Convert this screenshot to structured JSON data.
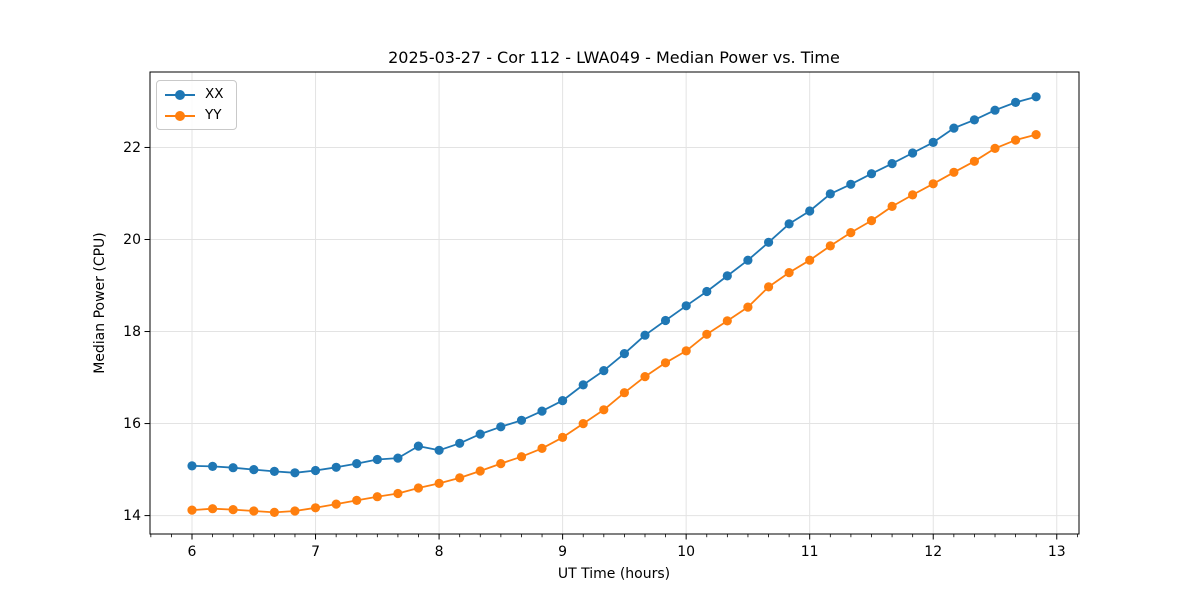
{
  "figure": {
    "background": "#ffffff"
  },
  "chart_data": {
    "type": "line",
    "title": "2025-03-27 - Cor 112 - LWA049 - Median Power vs. Time",
    "xlabel": "UT Time (hours)",
    "ylabel": "Median Power (CPU)",
    "xlim": [
      5.66,
      13.18
    ],
    "ylim": [
      13.6,
      23.64
    ],
    "xticks": [
      6,
      7,
      8,
      9,
      10,
      11,
      12,
      13
    ],
    "yticks": [
      14,
      16,
      18,
      20,
      22
    ],
    "x_minor_step": 0.16667,
    "grid": true,
    "grid_color": "#e3e3e3",
    "spine_color": "#000000",
    "legend_position": "upper-left",
    "marker": "circle",
    "series": [
      {
        "name": "XX",
        "color": "#1f77b4",
        "x": [
          6.0,
          6.167,
          6.333,
          6.5,
          6.667,
          6.833,
          7.0,
          7.167,
          7.333,
          7.5,
          7.667,
          7.833,
          8.0,
          8.167,
          8.333,
          8.5,
          8.667,
          8.833,
          9.0,
          9.167,
          9.333,
          9.5,
          9.667,
          9.833,
          10.0,
          10.167,
          10.333,
          10.5,
          10.667,
          10.833,
          11.0,
          11.167,
          11.333,
          11.5,
          11.667,
          11.833,
          12.0,
          12.167,
          12.333,
          12.5,
          12.667,
          12.833
        ],
        "y": [
          15.08,
          15.07,
          15.04,
          15.0,
          14.96,
          14.93,
          14.98,
          15.05,
          15.13,
          15.22,
          15.25,
          15.51,
          15.42,
          15.57,
          15.77,
          15.93,
          16.07,
          16.27,
          16.5,
          16.84,
          17.15,
          17.52,
          17.92,
          18.24,
          18.56,
          18.87,
          19.21,
          19.55,
          19.94,
          20.34,
          20.62,
          20.99,
          21.2,
          21.43,
          21.65,
          21.88,
          22.11,
          22.42,
          22.6,
          22.81,
          22.98,
          23.1
        ]
      },
      {
        "name": "YY",
        "color": "#ff7f0e",
        "x": [
          6.0,
          6.167,
          6.333,
          6.5,
          6.667,
          6.833,
          7.0,
          7.167,
          7.333,
          7.5,
          7.667,
          7.833,
          8.0,
          8.167,
          8.333,
          8.5,
          8.667,
          8.833,
          9.0,
          9.167,
          9.333,
          9.5,
          9.667,
          9.833,
          10.0,
          10.167,
          10.333,
          10.5,
          10.667,
          10.833,
          11.0,
          11.167,
          11.333,
          11.5,
          11.667,
          11.833,
          12.0,
          12.167,
          12.333,
          12.5,
          12.667,
          12.833
        ],
        "y": [
          14.12,
          14.15,
          14.13,
          14.1,
          14.07,
          14.1,
          14.17,
          14.25,
          14.33,
          14.41,
          14.48,
          14.6,
          14.7,
          14.82,
          14.97,
          15.13,
          15.28,
          15.46,
          15.7,
          16.0,
          16.3,
          16.67,
          17.02,
          17.32,
          17.58,
          17.94,
          18.23,
          18.53,
          18.97,
          19.28,
          19.55,
          19.86,
          20.15,
          20.41,
          20.72,
          20.97,
          21.21,
          21.46,
          21.7,
          21.98,
          22.16,
          22.28
        ]
      }
    ]
  }
}
